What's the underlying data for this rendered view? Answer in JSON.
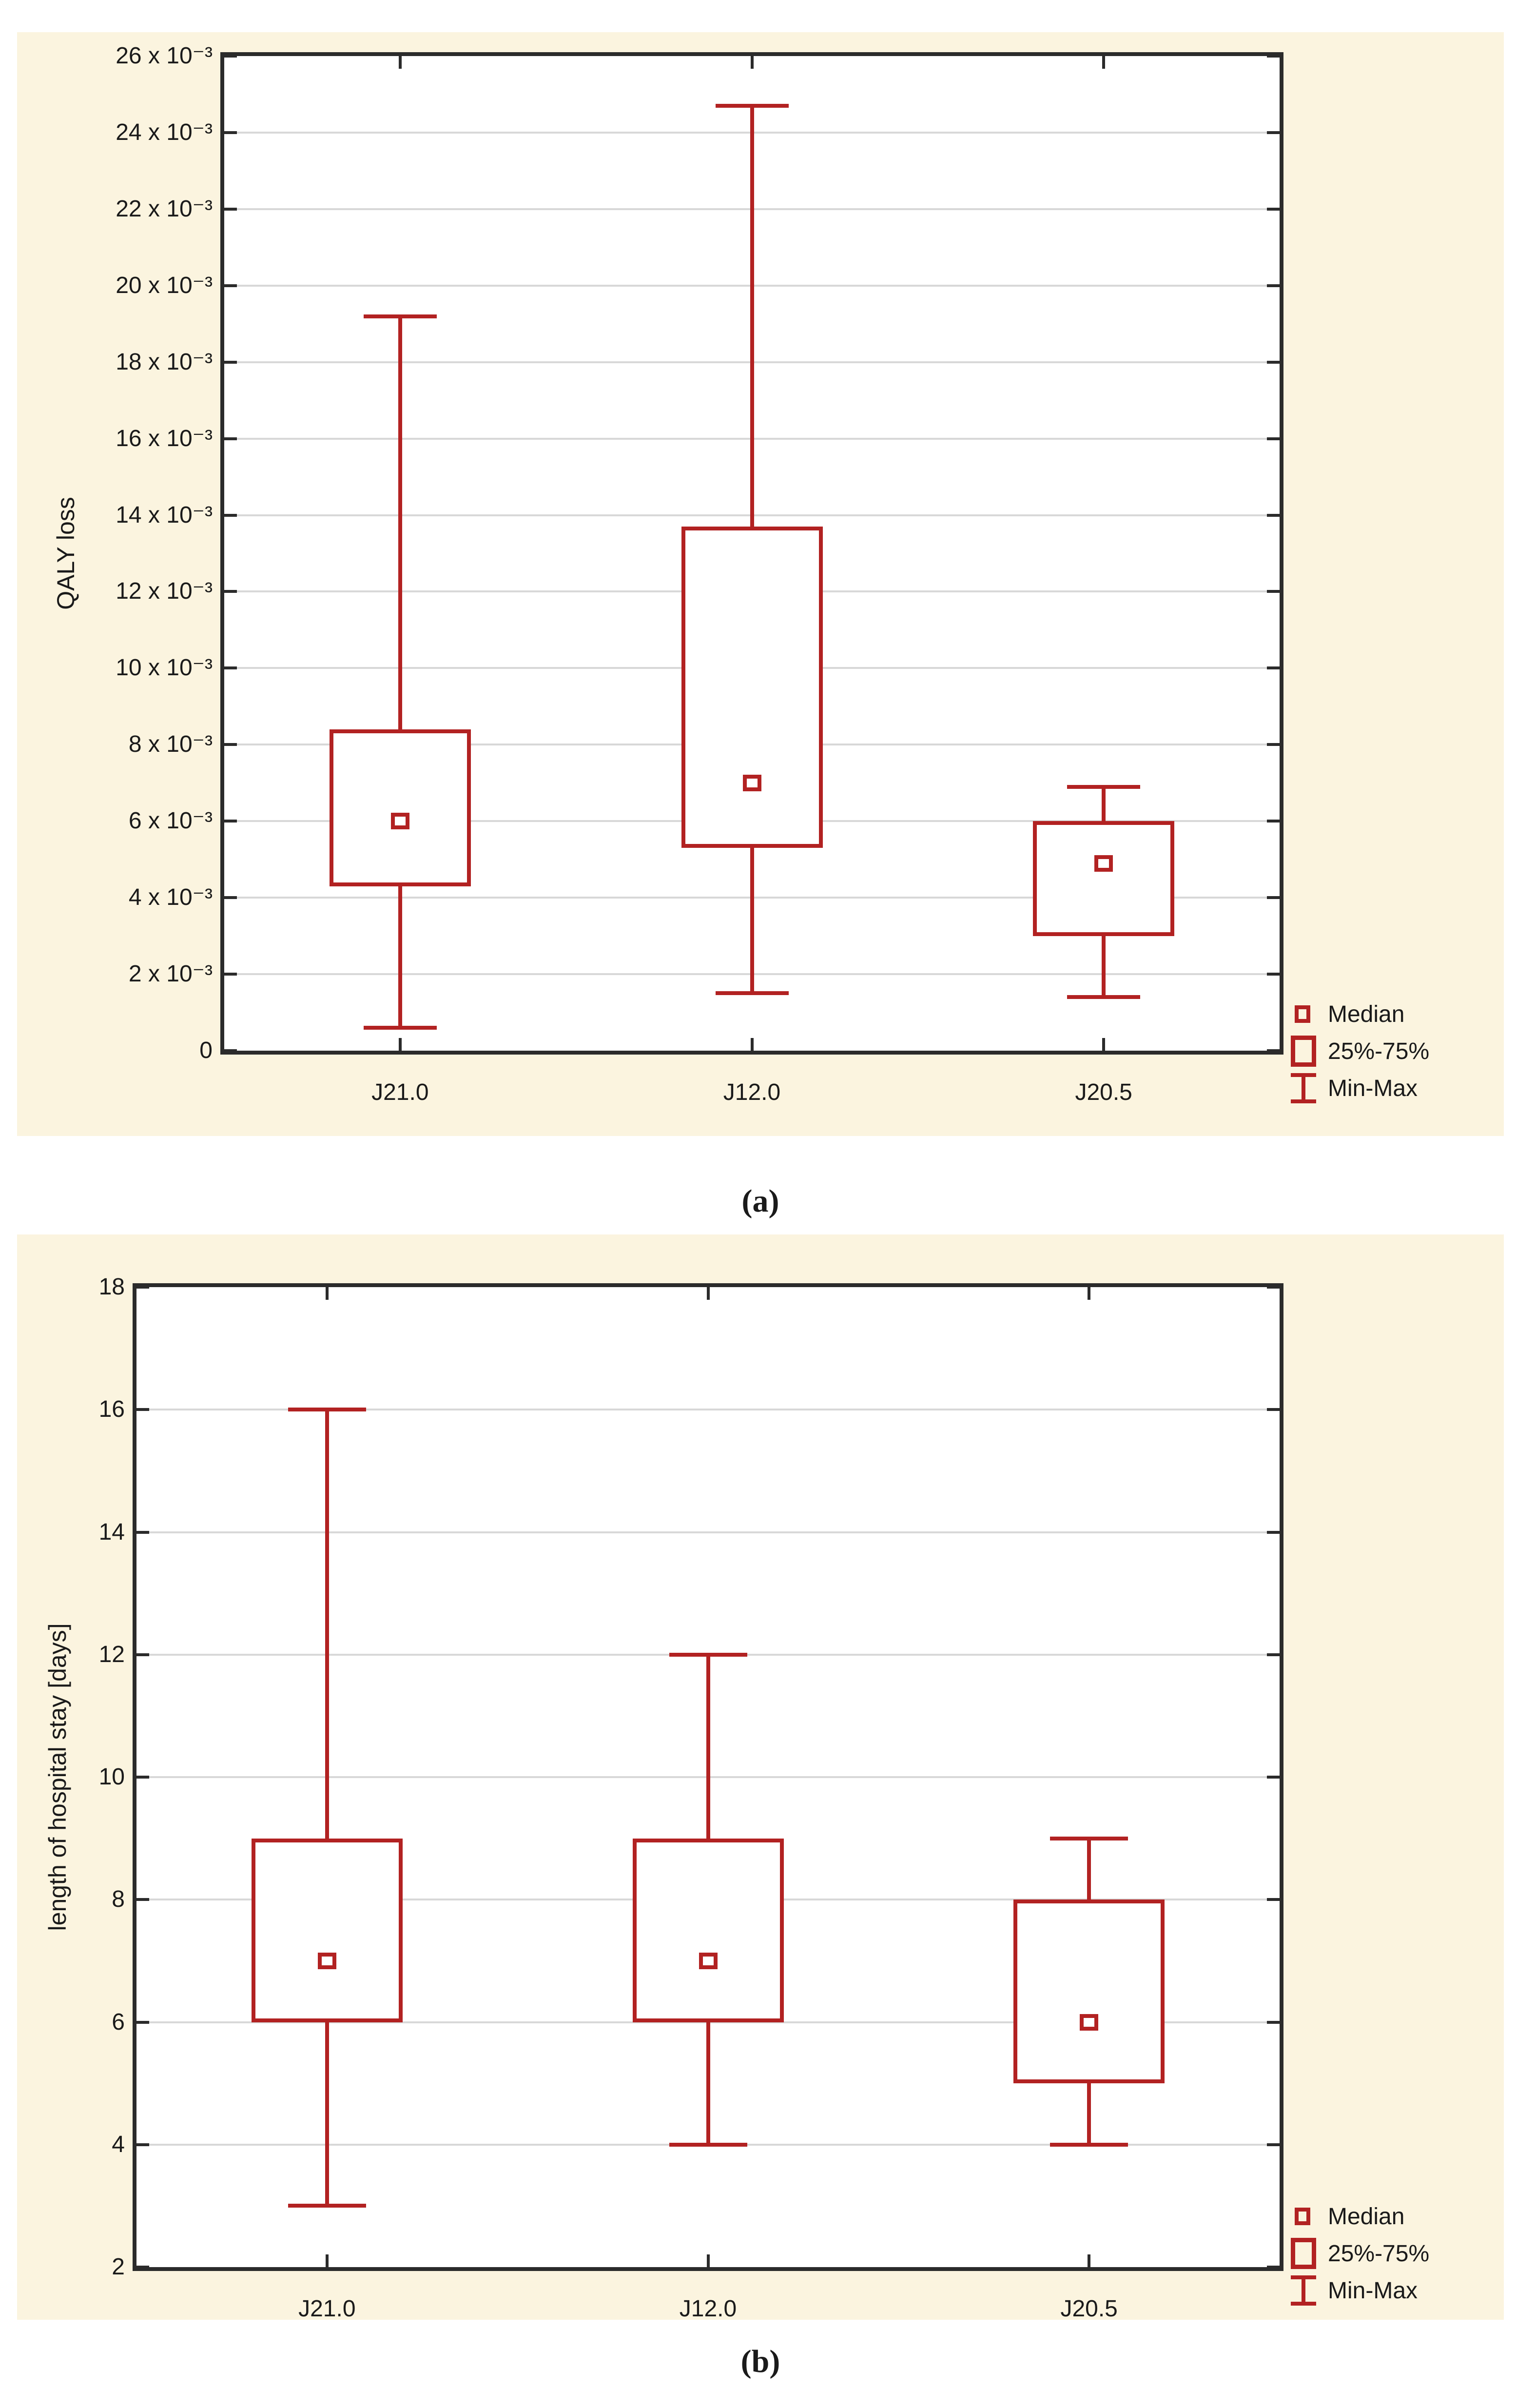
{
  "figure": {
    "captions": {
      "a": "(a)",
      "b": "(b)"
    },
    "legend": {
      "items": [
        {
          "marker": "median-square-icon",
          "label": "Median"
        },
        {
          "marker": "iqr-box-icon",
          "label": "25%-75%"
        },
        {
          "marker": "min-max-whisker-icon",
          "label": "Min-Max"
        }
      ]
    },
    "colors": {
      "panel_bg": "#FBF4DF",
      "plot_bg": "#FFFFFF",
      "grid": "#D8D8D8",
      "frame": "#2B2B2B",
      "box_red": "#B22222",
      "text": "#1A1A1A"
    }
  },
  "chart_data": [
    {
      "id": "a",
      "type": "box",
      "title": "",
      "ylabel": "QALY loss",
      "categories": [
        "J21.0",
        "J12.0",
        "J20.5"
      ],
      "y_axis": {
        "min": 0,
        "max": 26,
        "step": 2,
        "tick_labels": [
          "26 x 10⁻³",
          "24 x 10⁻³",
          "22 x 10⁻³",
          "20 x 10⁻³",
          "18 x 10⁻³",
          "16 x 10⁻³",
          "14 x 10⁻³",
          "12 x 10⁻³",
          "10 x 10⁻³",
          "8 x 10⁻³",
          "6 x 10⁻³",
          "4 x 10⁻³",
          "2 x 10⁻³",
          "0"
        ]
      },
      "value_unit": "×10⁻³",
      "grid": "horizontal",
      "legend_position": "bottom-right",
      "series": [
        {
          "category": "J21.0",
          "min": 0.6,
          "q1": 4.3,
          "median": 6.0,
          "q3": 8.4,
          "max": 19.2
        },
        {
          "category": "J12.0",
          "min": 1.5,
          "q1": 5.3,
          "median": 7.0,
          "q3": 13.7,
          "max": 24.7
        },
        {
          "category": "J20.5",
          "min": 1.4,
          "q1": 3.0,
          "median": 4.9,
          "q3": 6.0,
          "max": 6.9
        }
      ]
    },
    {
      "id": "b",
      "type": "box",
      "title": "",
      "ylabel": "length of hospital stay [days]",
      "categories": [
        "J21.0",
        "J12.0",
        "J20.5"
      ],
      "y_axis": {
        "min": 2,
        "max": 18,
        "step": 2,
        "tick_labels": [
          "18",
          "16",
          "14",
          "12",
          "10",
          "8",
          "6",
          "4",
          "2"
        ]
      },
      "value_unit": "days",
      "grid": "horizontal",
      "legend_position": "bottom-right",
      "series": [
        {
          "category": "J21.0",
          "min": 3,
          "q1": 6,
          "median": 7,
          "q3": 9,
          "max": 16
        },
        {
          "category": "J12.0",
          "min": 4,
          "q1": 6,
          "median": 7,
          "q3": 9,
          "max": 12
        },
        {
          "category": "J20.5",
          "min": 4,
          "q1": 5,
          "median": 6,
          "q3": 8,
          "max": 9
        }
      ]
    }
  ]
}
